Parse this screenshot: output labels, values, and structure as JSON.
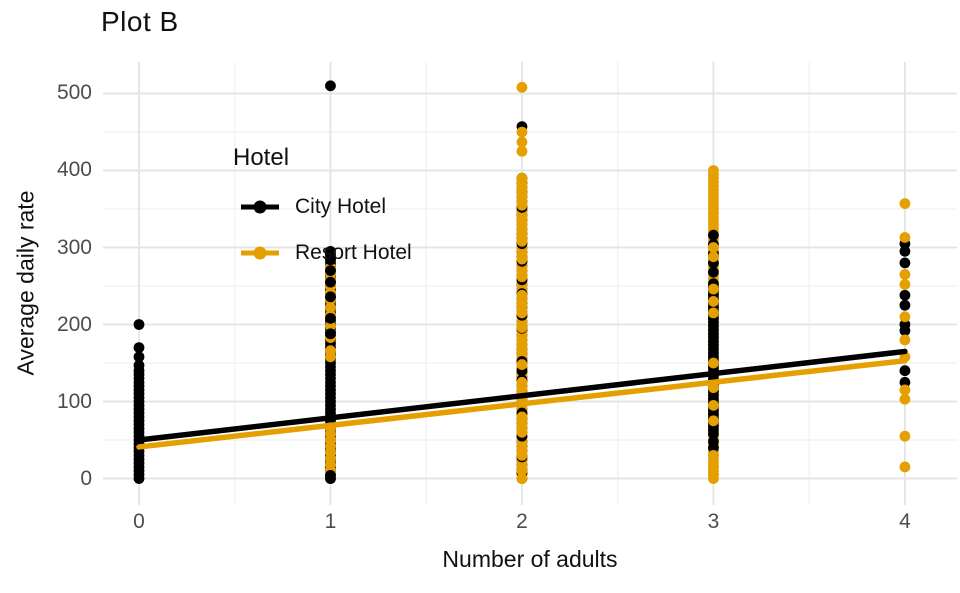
{
  "title": "Plot B",
  "chart_data": {
    "type": "scatter",
    "title": "Plot B",
    "xlabel": "Number of adults",
    "ylabel": "Average daily rate",
    "x_ticks": [
      0,
      1,
      2,
      3,
      4
    ],
    "y_ticks": [
      0,
      100,
      200,
      300,
      400,
      500
    ],
    "x_minor": [
      0.5,
      1.5,
      2.5,
      3.5
    ],
    "y_minor": [
      50,
      150,
      250,
      350,
      450
    ],
    "xlim": [
      -0.188,
      4.272
    ],
    "ylim": [
      -34.4,
      540.9
    ],
    "grid": "on",
    "legend_position": "inside-top-left",
    "legend": {
      "title": "Hotel",
      "entries": [
        {
          "label": "City Hotel",
          "series": "city",
          "color": "#000000"
        },
        {
          "label": "Resort Hotel",
          "series": "resort",
          "color": "#E69F00"
        }
      ]
    },
    "colors": {
      "city": "#000000",
      "resort": "#E69F00",
      "grid_major": "#E3E3E3",
      "grid_minor": "#F0F0F0",
      "tick_label": "#4D4D4D",
      "background": "#FFFFFF"
    },
    "point_radius": 5.4,
    "line_width": 5.5,
    "regression_lines": [
      {
        "name": "City Hotel",
        "series": "city",
        "x": [
          0,
          4
        ],
        "y": [
          50,
          165
        ]
      },
      {
        "name": "Resort Hotel",
        "series": "resort",
        "x": [
          0,
          4
        ],
        "y": [
          41,
          153
        ]
      }
    ],
    "point_columns": [
      {
        "x": 0,
        "draw": [
          {
            "t": "seg",
            "c": "city",
            "a": 0,
            "b": 140,
            "s": 5
          },
          {
            "t": "pts",
            "c": "city",
            "v": [
              147,
              158,
              170,
              200
            ]
          }
        ]
      },
      {
        "x": 1,
        "draw": [
          {
            "t": "seg",
            "c": "city",
            "a": 0,
            "b": 295,
            "s": 5
          },
          {
            "t": "pts",
            "c": "resort",
            "v": [
              10,
              18,
              26,
              34,
              42,
              50,
              58,
              66,
              158,
              166,
              183,
              198,
              212,
              222,
              232,
              241,
              250,
              258,
              266,
              274
            ]
          },
          {
            "t": "pts",
            "c": "city",
            "v": [
              0,
              4,
              80,
              188,
              208,
              236,
              255,
              270,
              284,
              292
            ]
          },
          {
            "t": "pts",
            "c": "city",
            "v": [
              510
            ]
          }
        ]
      },
      {
        "x": 2,
        "draw": [
          {
            "t": "seg",
            "c": "city",
            "a": 0,
            "b": 390,
            "s": 6
          },
          {
            "t": "seg",
            "c": "resort",
            "a": 0,
            "b": 390,
            "s": 5
          },
          {
            "t": "pts",
            "c": "city",
            "v": [
              352,
              305,
              282,
              258,
              240,
              212,
              195,
              152,
              140,
              128,
              85,
              55,
              28,
              8
            ]
          },
          {
            "t": "pts",
            "c": "resort",
            "v": [
              378,
              355,
              332,
              308,
              285,
              262,
              238,
              215,
              196,
              172,
              148,
              125,
              100,
              80,
              60,
              30,
              10,
              0
            ]
          },
          {
            "t": "pts",
            "c": "city",
            "v": [
              457
            ]
          },
          {
            "t": "pts",
            "c": "resort",
            "v": [
              425,
              437,
              450,
              508
            ]
          }
        ]
      },
      {
        "x": 3,
        "draw": [
          {
            "t": "seg",
            "c": "resort",
            "a": 0,
            "b": 402,
            "s": 5
          },
          {
            "t": "seg",
            "c": "city",
            "a": 58,
            "b": 255,
            "s": 5
          },
          {
            "t": "pts",
            "c": "city",
            "v": [
              268,
              280,
              292,
              304,
              316,
              40,
              48
            ]
          },
          {
            "t": "pts",
            "c": "resort",
            "v": [
              300,
              288,
              246,
              230,
              215,
              150,
              118,
              95,
              75,
              30,
              15,
              5
            ]
          }
        ]
      },
      {
        "x": 4,
        "draw": [
          {
            "t": "pts",
            "c": "city",
            "v": [
              305,
              295,
              280,
              238,
              225,
              200,
              192,
              140,
              125
            ]
          },
          {
            "t": "pts",
            "c": "resort",
            "v": [
              357,
              313,
              265,
              252,
              210,
              180,
              158,
              115,
              103,
              55,
              15
            ]
          }
        ]
      }
    ]
  }
}
